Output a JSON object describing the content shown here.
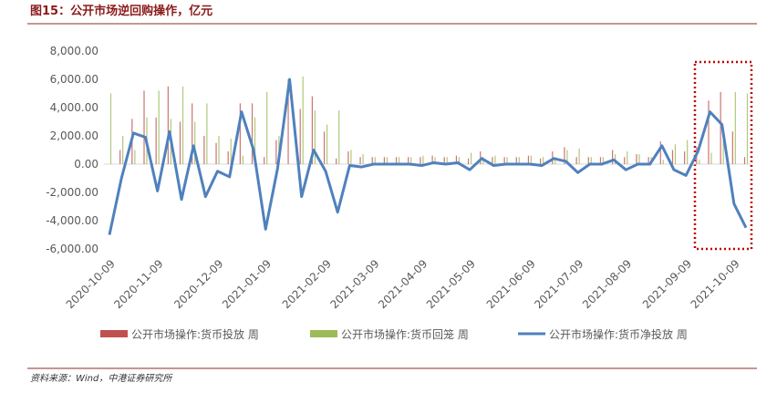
{
  "chart_data": {
    "type": "bar-line",
    "title": "图15：公开市场逆回购操作，亿元",
    "source": "资料来源：Wind，中港证券研究所",
    "categories": [
      "2020-10-09",
      null,
      null,
      null,
      "2020-11-09",
      null,
      null,
      null,
      null,
      "2020-12-09",
      null,
      null,
      null,
      "2021-01-09",
      null,
      null,
      null,
      null,
      "2021-02-09",
      null,
      null,
      null,
      "2021-03-09",
      null,
      null,
      null,
      "2021-04-09",
      null,
      null,
      null,
      "2021-05-09",
      null,
      null,
      null,
      null,
      "2021-06-09",
      null,
      null,
      null,
      "2021-07-09",
      null,
      null,
      null,
      "2021-08-09",
      null,
      null,
      null,
      null,
      "2021-09-09",
      null,
      null,
      null,
      "2021-10-09",
      null
    ],
    "series": [
      {
        "name": "公开市场操作:货币投放 周",
        "color": "#c0504d",
        "kind": "bar",
        "values": [
          0,
          1000,
          3200,
          5200,
          3300,
          5500,
          3000,
          4300,
          2000,
          1500,
          900,
          4300,
          4300,
          500,
          1700,
          6000,
          3900,
          4800,
          2300,
          400,
          900,
          500,
          500,
          500,
          500,
          500,
          500,
          600,
          500,
          600,
          400,
          900,
          500,
          500,
          500,
          600,
          400,
          900,
          1200,
          500,
          500,
          500,
          1000,
          500,
          700,
          500,
          1600,
          1000,
          900,
          1200,
          4500,
          5100,
          2300,
          500
        ]
      },
      {
        "name": "公开市场操作:货币回笼 周",
        "color": "#9bbb59",
        "kind": "bar",
        "values": [
          5000,
          2000,
          1000,
          3300,
          5200,
          3200,
          5500,
          3000,
          4300,
          2000,
          1800,
          600,
          3300,
          5100,
          2000,
          0,
          6200,
          3800,
          2800,
          3800,
          1000,
          700,
          500,
          500,
          500,
          500,
          600,
          500,
          500,
          500,
          800,
          500,
          600,
          500,
          500,
          600,
          500,
          500,
          1000,
          1100,
          500,
          500,
          700,
          900,
          700,
          500,
          300,
          1400,
          1700,
          300,
          800,
          2300,
          5100,
          5000
        ]
      },
      {
        "name": "公开市场操作:货币净投放 周",
        "color": "#4f81bd",
        "kind": "line",
        "values": [
          -5000,
          -1000,
          2200,
          1900,
          -1900,
          2300,
          -2500,
          1300,
          -2300,
          -500,
          -900,
          3700,
          1000,
          -4600,
          -300,
          6000,
          -2300,
          1000,
          -500,
          -3400,
          -100,
          -200,
          0,
          0,
          0,
          0,
          -100,
          100,
          0,
          100,
          -400,
          400,
          -100,
          0,
          0,
          0,
          -100,
          400,
          200,
          -600,
          0,
          0,
          300,
          -400,
          0,
          0,
          1300,
          -400,
          -800,
          900,
          3700,
          2800,
          -2800,
          -4500
        ]
      }
    ],
    "ylim": [
      -6000,
      8000
    ],
    "yticks": [
      {
        "value": -6000,
        "label": "-6,000.00"
      },
      {
        "value": -4000,
        "label": "-4,000.00"
      },
      {
        "value": -2000,
        "label": "-2,000.00"
      },
      {
        "value": 0,
        "label": "0.00"
      },
      {
        "value": 2000,
        "label": "2,000.00"
      },
      {
        "value": 4000,
        "label": "4,000.00"
      },
      {
        "value": 6000,
        "label": "6,000.00"
      },
      {
        "value": 8000,
        "label": "8,000.00"
      }
    ],
    "grid": false
  }
}
